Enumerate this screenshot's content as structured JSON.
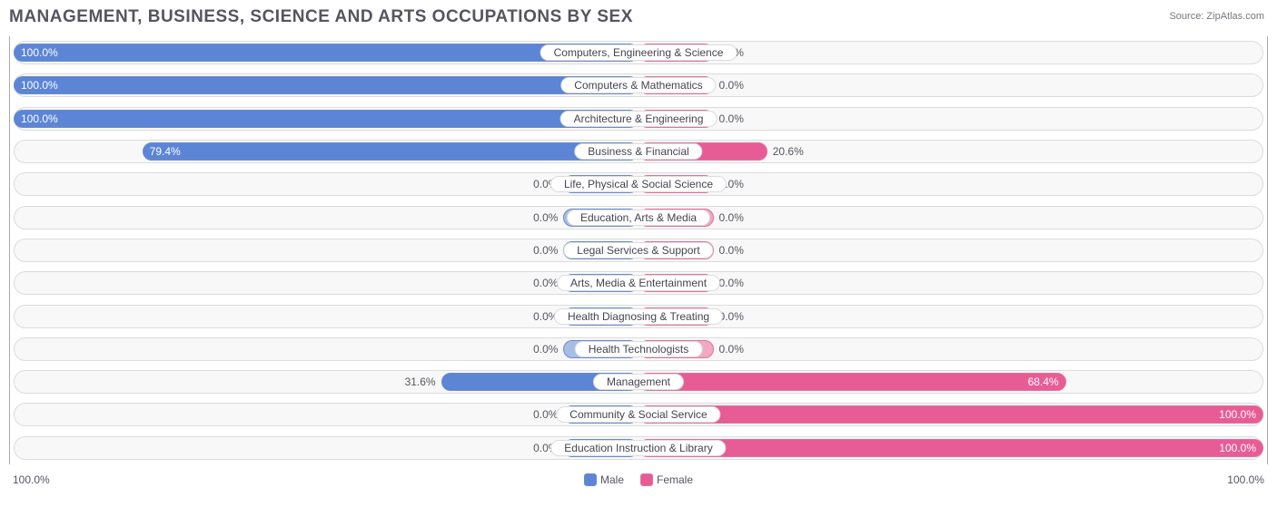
{
  "title": "MANAGEMENT, BUSINESS, SCIENCE AND ARTS OCCUPATIONS BY SEX",
  "source": "Source: ZipAtlas.com",
  "chart": {
    "type": "diverging-bar",
    "background_color": "#ffffff",
    "track_bg": "#f8f8f8",
    "track_border": "#dcdcdc",
    "axis_border": "#aaaaaa",
    "male_color_full": "#5c85d6",
    "male_color_empty": "#a7bde6",
    "female_color_full": "#e85c96",
    "female_color_empty": "#f0a8c3",
    "label_fontsize": 12,
    "title_fontsize": 19,
    "title_color": "#555560",
    "min_bar_pct": 12,
    "axis_left_label": "100.0%",
    "axis_right_label": "100.0%",
    "legend": {
      "male": "Male",
      "female": "Female"
    },
    "rows": [
      {
        "category": "Computers, Engineering & Science",
        "male": 100.0,
        "female": 0.0
      },
      {
        "category": "Computers & Mathematics",
        "male": 100.0,
        "female": 0.0
      },
      {
        "category": "Architecture & Engineering",
        "male": 100.0,
        "female": 0.0
      },
      {
        "category": "Business & Financial",
        "male": 79.4,
        "female": 20.6
      },
      {
        "category": "Life, Physical & Social Science",
        "male": 0.0,
        "female": 0.0
      },
      {
        "category": "Education, Arts & Media",
        "male": 0.0,
        "female": 0.0
      },
      {
        "category": "Legal Services & Support",
        "male": 0.0,
        "female": 0.0
      },
      {
        "category": "Arts, Media & Entertainment",
        "male": 0.0,
        "female": 0.0
      },
      {
        "category": "Health Diagnosing & Treating",
        "male": 0.0,
        "female": 0.0
      },
      {
        "category": "Health Technologists",
        "male": 0.0,
        "female": 0.0
      },
      {
        "category": "Management",
        "male": 31.6,
        "female": 68.4
      },
      {
        "category": "Community & Social Service",
        "male": 0.0,
        "female": 100.0
      },
      {
        "category": "Education Instruction & Library",
        "male": 0.0,
        "female": 100.0
      }
    ]
  }
}
